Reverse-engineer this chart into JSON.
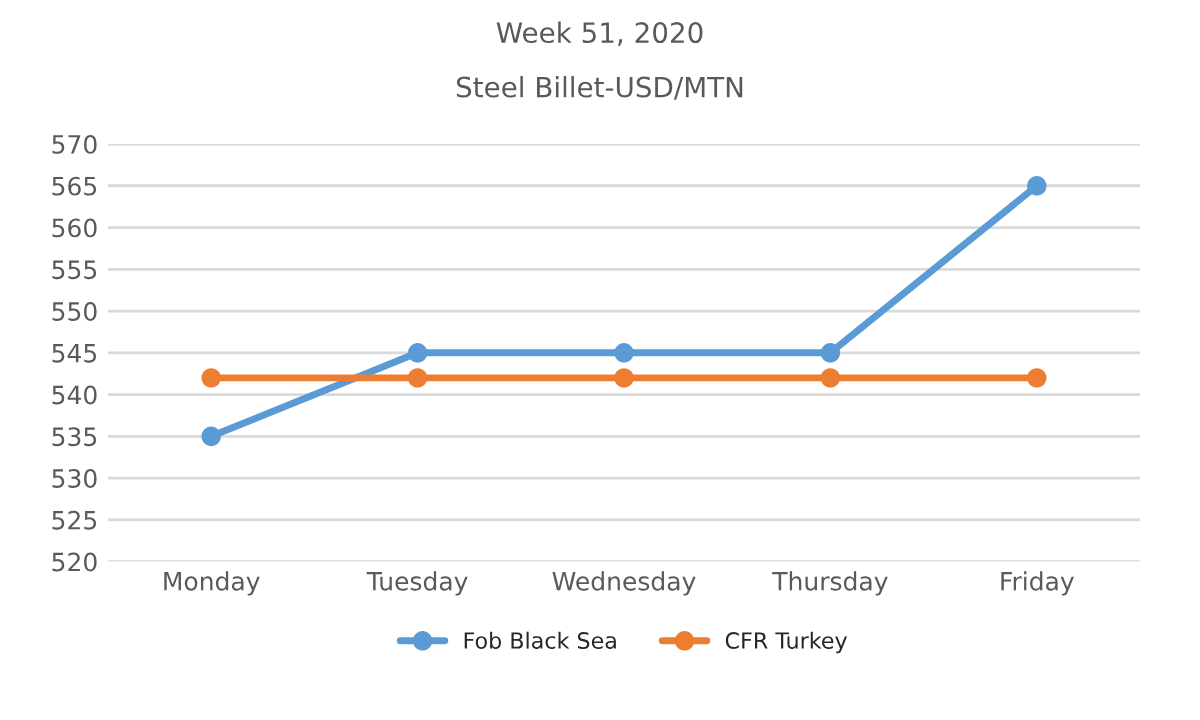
{
  "chart_data": {
    "type": "line",
    "title": "Week 51, 2020",
    "subtitle": "Steel Billet-USD/MTN",
    "categories": [
      "Monday",
      "Tuesday",
      "Wednesday",
      "Thursday",
      "Friday"
    ],
    "series": [
      {
        "name": "Fob Black Sea",
        "color": "#5b9bd5",
        "values": [
          535,
          545,
          545,
          545,
          565
        ]
      },
      {
        "name": "CFR Turkey",
        "color": "#ed7d31",
        "values": [
          542,
          542,
          542,
          542,
          542
        ]
      }
    ],
    "ylim": [
      520,
      570
    ],
    "yticks": [
      520,
      525,
      530,
      535,
      540,
      545,
      550,
      555,
      560,
      565,
      570
    ],
    "grid": "y",
    "legend": "bottom",
    "marker": "circle",
    "line_style": "solid"
  }
}
